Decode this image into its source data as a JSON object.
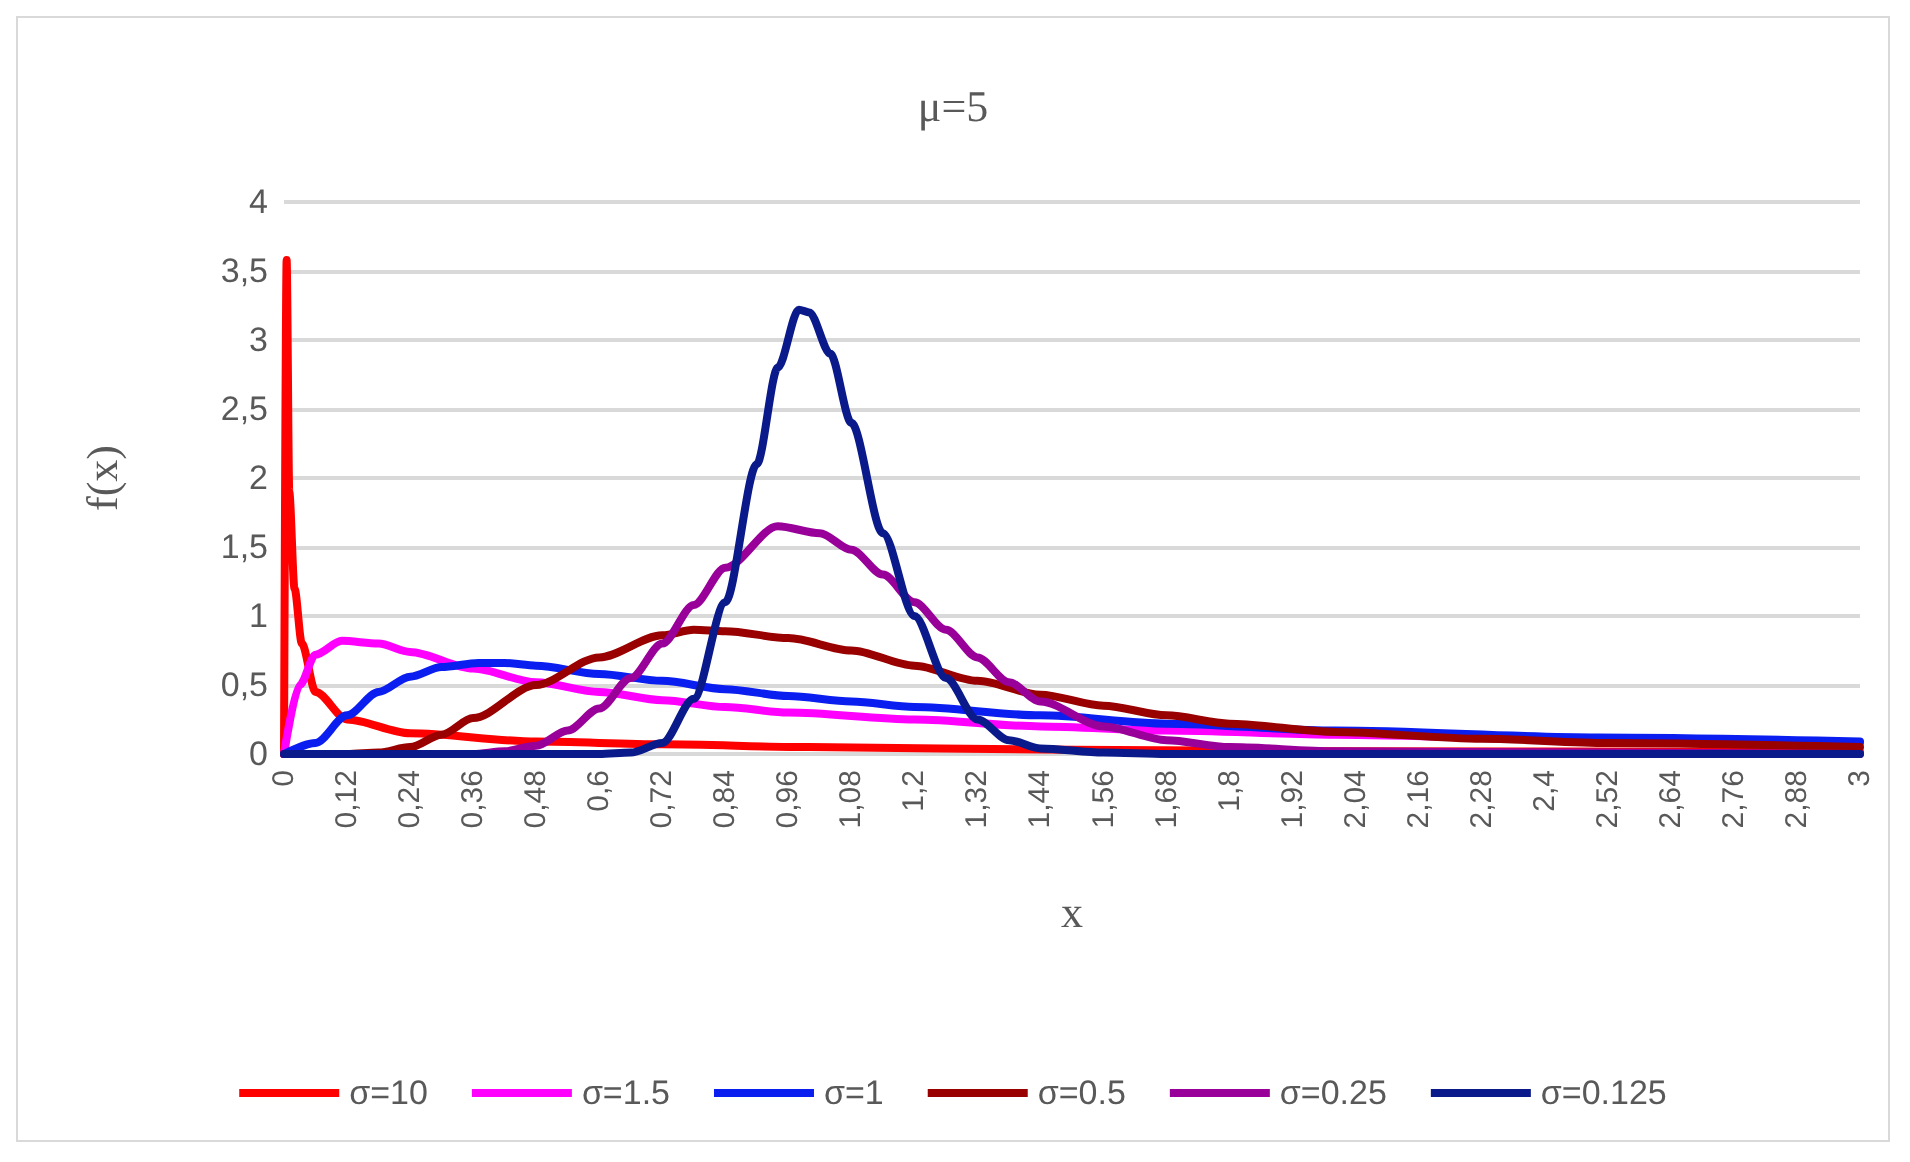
{
  "chart_data": {
    "type": "line",
    "title": "μ=5",
    "xlabel": "x",
    "ylabel": "f(x)",
    "xlim": [
      0,
      3
    ],
    "xticks": [
      0,
      {
        "value": 0.12,
        "label": "0,12"
      },
      {
        "value": 0.24,
        "label": "0,24"
      },
      {
        "value": 0.36,
        "label": "0,36"
      },
      {
        "value": 0.48,
        "label": "0,48"
      },
      {
        "value": 0.6,
        "label": "0,6"
      },
      {
        "value": 0.72,
        "label": "0,72"
      },
      {
        "value": 0.84,
        "label": "0,84"
      },
      {
        "value": 0.96,
        "label": "0,96"
      },
      {
        "value": 1.08,
        "label": "1,08"
      },
      {
        "value": 1.2,
        "label": "1,2"
      },
      {
        "value": 1.32,
        "label": "1,32"
      },
      {
        "value": 1.44,
        "label": "1,44"
      },
      {
        "value": 1.56,
        "label": "1,56"
      },
      {
        "value": 1.68,
        "label": "1,68"
      },
      {
        "value": 1.8,
        "label": "1,8"
      },
      {
        "value": 1.92,
        "label": "1,92"
      },
      {
        "value": 2.04,
        "label": "2,04"
      },
      {
        "value": 2.16,
        "label": "2,16"
      },
      {
        "value": 2.28,
        "label": "2,28"
      },
      {
        "value": 2.4,
        "label": "2,4"
      },
      {
        "value": 2.52,
        "label": "2,52"
      },
      {
        "value": 2.64,
        "label": "2,64"
      },
      {
        "value": 2.76,
        "label": "2,76"
      },
      {
        "value": 2.88,
        "label": "2,88"
      },
      3
    ],
    "ylim": [
      0,
      4
    ],
    "yticks": [
      0,
      {
        "value": 0.5,
        "label": "0,5"
      },
      1,
      {
        "value": 1.5,
        "label": "1,5"
      },
      2,
      {
        "value": 2.5,
        "label": "2,5"
      },
      3,
      {
        "value": 3.5,
        "label": "3,5"
      },
      4
    ],
    "grid": "y",
    "legend": "bottom",
    "marker": "none",
    "line_style": "solid",
    "series": [
      {
        "name": "σ=10",
        "color": "#ff0000",
        "x": [
          0,
          0.005,
          0.01,
          0.02,
          0.034,
          0.06,
          0.12,
          0.24,
          0.48,
          0.72,
          1,
          1.5,
          2,
          3
        ],
        "values": [
          0,
          3.58,
          1.9,
          1.2,
          0.8,
          0.45,
          0.25,
          0.15,
          0.09,
          0.07,
          0.05,
          0.03,
          0.02,
          0.015
        ]
      },
      {
        "name": "σ=1.5",
        "color": "#ff00ff",
        "x": [
          0,
          0.03,
          0.06,
          0.11,
          0.18,
          0.24,
          0.36,
          0.48,
          0.6,
          0.72,
          0.84,
          0.96,
          1.2,
          1.44,
          1.68,
          2,
          2.5,
          3
        ],
        "values": [
          0,
          0.5,
          0.72,
          0.82,
          0.8,
          0.74,
          0.62,
          0.52,
          0.45,
          0.39,
          0.34,
          0.3,
          0.25,
          0.2,
          0.17,
          0.14,
          0.1,
          0.08
        ]
      },
      {
        "name": "σ=1",
        "color": "#0a1ef0",
        "x": [
          0,
          0.06,
          0.12,
          0.18,
          0.24,
          0.3,
          0.37,
          0.42,
          0.48,
          0.6,
          0.72,
          0.84,
          0.96,
          1.08,
          1.2,
          1.44,
          1.68,
          2,
          2.5,
          3
        ],
        "values": [
          0,
          0.08,
          0.28,
          0.45,
          0.56,
          0.63,
          0.66,
          0.66,
          0.64,
          0.58,
          0.53,
          0.47,
          0.42,
          0.38,
          0.34,
          0.28,
          0.22,
          0.17,
          0.12,
          0.09
        ]
      },
      {
        "name": "σ=0.5",
        "color": "#990000",
        "x": [
          0,
          0.12,
          0.18,
          0.24,
          0.3,
          0.36,
          0.48,
          0.6,
          0.72,
          0.78,
          0.84,
          0.96,
          1.08,
          1.2,
          1.32,
          1.44,
          1.56,
          1.68,
          1.8,
          2,
          2.28,
          2.52,
          3
        ],
        "values": [
          0,
          0,
          0.01,
          0.05,
          0.14,
          0.26,
          0.5,
          0.7,
          0.86,
          0.9,
          0.89,
          0.84,
          0.75,
          0.64,
          0.53,
          0.43,
          0.35,
          0.28,
          0.22,
          0.16,
          0.11,
          0.08,
          0.05
        ]
      },
      {
        "name": "σ=0.25",
        "color": "#990099",
        "x": [
          0,
          0.36,
          0.42,
          0.48,
          0.54,
          0.6,
          0.66,
          0.72,
          0.78,
          0.84,
          0.94,
          1.02,
          1.08,
          1.14,
          1.2,
          1.26,
          1.32,
          1.38,
          1.44,
          1.56,
          1.68,
          1.8,
          2,
          2.5,
          3
        ],
        "values": [
          0,
          0,
          0.02,
          0.06,
          0.17,
          0.33,
          0.55,
          0.8,
          1.08,
          1.35,
          1.65,
          1.6,
          1.48,
          1.3,
          1.1,
          0.9,
          0.7,
          0.52,
          0.38,
          0.2,
          0.1,
          0.05,
          0.02,
          0.01,
          0
        ]
      },
      {
        "name": "σ=0.125",
        "color": "#0b1a8a",
        "x": [
          0,
          0.6,
          0.66,
          0.72,
          0.78,
          0.84,
          0.9,
          0.94,
          0.98,
          1.0,
          1.04,
          1.08,
          1.14,
          1.2,
          1.26,
          1.32,
          1.38,
          1.44,
          1.56,
          1.68,
          3
        ],
        "values": [
          0,
          0,
          0.01,
          0.08,
          0.4,
          1.1,
          2.1,
          2.8,
          3.22,
          3.2,
          2.9,
          2.4,
          1.6,
          1.0,
          0.55,
          0.25,
          0.1,
          0.04,
          0.01,
          0,
          0
        ]
      }
    ]
  }
}
